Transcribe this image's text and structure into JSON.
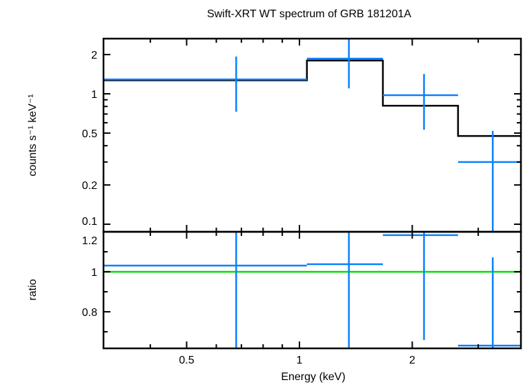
{
  "chart_data": [
    {
      "type": "line",
      "title": "Swift-XRT WT spectrum of GRB 181201A",
      "xlabel": "Energy (keV)",
      "ylabel": "counts s⁻¹ keV⁻¹",
      "xscale": "log",
      "yscale": "log",
      "xlim": [
        0.3,
        3.9
      ],
      "ylim": [
        0.0875,
        2.65
      ],
      "xticks": [
        {
          "v": 0.5,
          "label": "0.5"
        },
        {
          "v": 1,
          "label": "1"
        },
        {
          "v": 2,
          "label": "2"
        }
      ],
      "yticks": [
        {
          "v": 0.1,
          "label": "0.1"
        },
        {
          "v": 0.2,
          "label": "0.2"
        },
        {
          "v": 0.5,
          "label": "0.5"
        },
        {
          "v": 1,
          "label": "1"
        },
        {
          "v": 2,
          "label": "2"
        }
      ],
      "data": {
        "color": "#0a80ff",
        "bins": [
          {
            "xlo": 0.3,
            "xhi": 1.047,
            "x": 0.678,
            "y": 1.29,
            "ylo": 0.73,
            "yhi": 1.93
          },
          {
            "xlo": 1.047,
            "xhi": 1.67,
            "x": 1.355,
            "y": 1.86,
            "ylo": 1.1,
            "yhi": 2.9
          },
          {
            "xlo": 1.67,
            "xhi": 2.65,
            "x": 2.15,
            "y": 0.976,
            "ylo": 0.53,
            "yhi": 1.42
          },
          {
            "xlo": 2.65,
            "xhi": 3.9,
            "x": 3.28,
            "y": 0.3,
            "ylo": 0.05,
            "yhi": 0.52
          }
        ]
      },
      "model": {
        "color": "#000000",
        "steps": [
          {
            "xlo": 0.3,
            "xhi": 1.047,
            "y": 1.27
          },
          {
            "xlo": 1.047,
            "xhi": 1.67,
            "y": 1.8
          },
          {
            "xlo": 1.67,
            "xhi": 2.65,
            "y": 0.81
          },
          {
            "xlo": 2.65,
            "xhi": 3.9,
            "y": 0.475
          }
        ]
      }
    },
    {
      "type": "line",
      "xlabel": "Energy (keV)",
      "ylabel": "ratio",
      "xscale": "log",
      "yscale": "linear",
      "xlim": [
        0.3,
        3.9
      ],
      "ylim": [
        0.617,
        1.2
      ],
      "xticks": [
        {
          "v": 0.5,
          "label": "0.5"
        },
        {
          "v": 1,
          "label": "1"
        },
        {
          "v": 2,
          "label": "2"
        }
      ],
      "yticks": [
        {
          "v": 0.8,
          "label": "0.8"
        },
        {
          "v": 1,
          "label": "1"
        },
        {
          "v": 1.2,
          "label": "1.2"
        }
      ],
      "reference_line": {
        "y": 1,
        "color": "#00e000"
      },
      "data": {
        "color": "#0a80ff",
        "bins": [
          {
            "xlo": 0.3,
            "xhi": 1.047,
            "x": 0.678,
            "y": 1.031,
            "ylo": 0.5,
            "yhi": 1.5
          },
          {
            "xlo": 1.047,
            "xhi": 1.67,
            "x": 1.355,
            "y": 1.038,
            "ylo": 0.5,
            "yhi": 1.5
          },
          {
            "xlo": 1.67,
            "xhi": 2.65,
            "x": 2.15,
            "y": 1.183,
            "ylo": 0.659,
            "yhi": 1.5
          },
          {
            "xlo": 2.65,
            "xhi": 3.9,
            "x": 3.28,
            "y": 0.631,
            "ylo": 0.5,
            "yhi": 1.072
          }
        ]
      }
    }
  ]
}
